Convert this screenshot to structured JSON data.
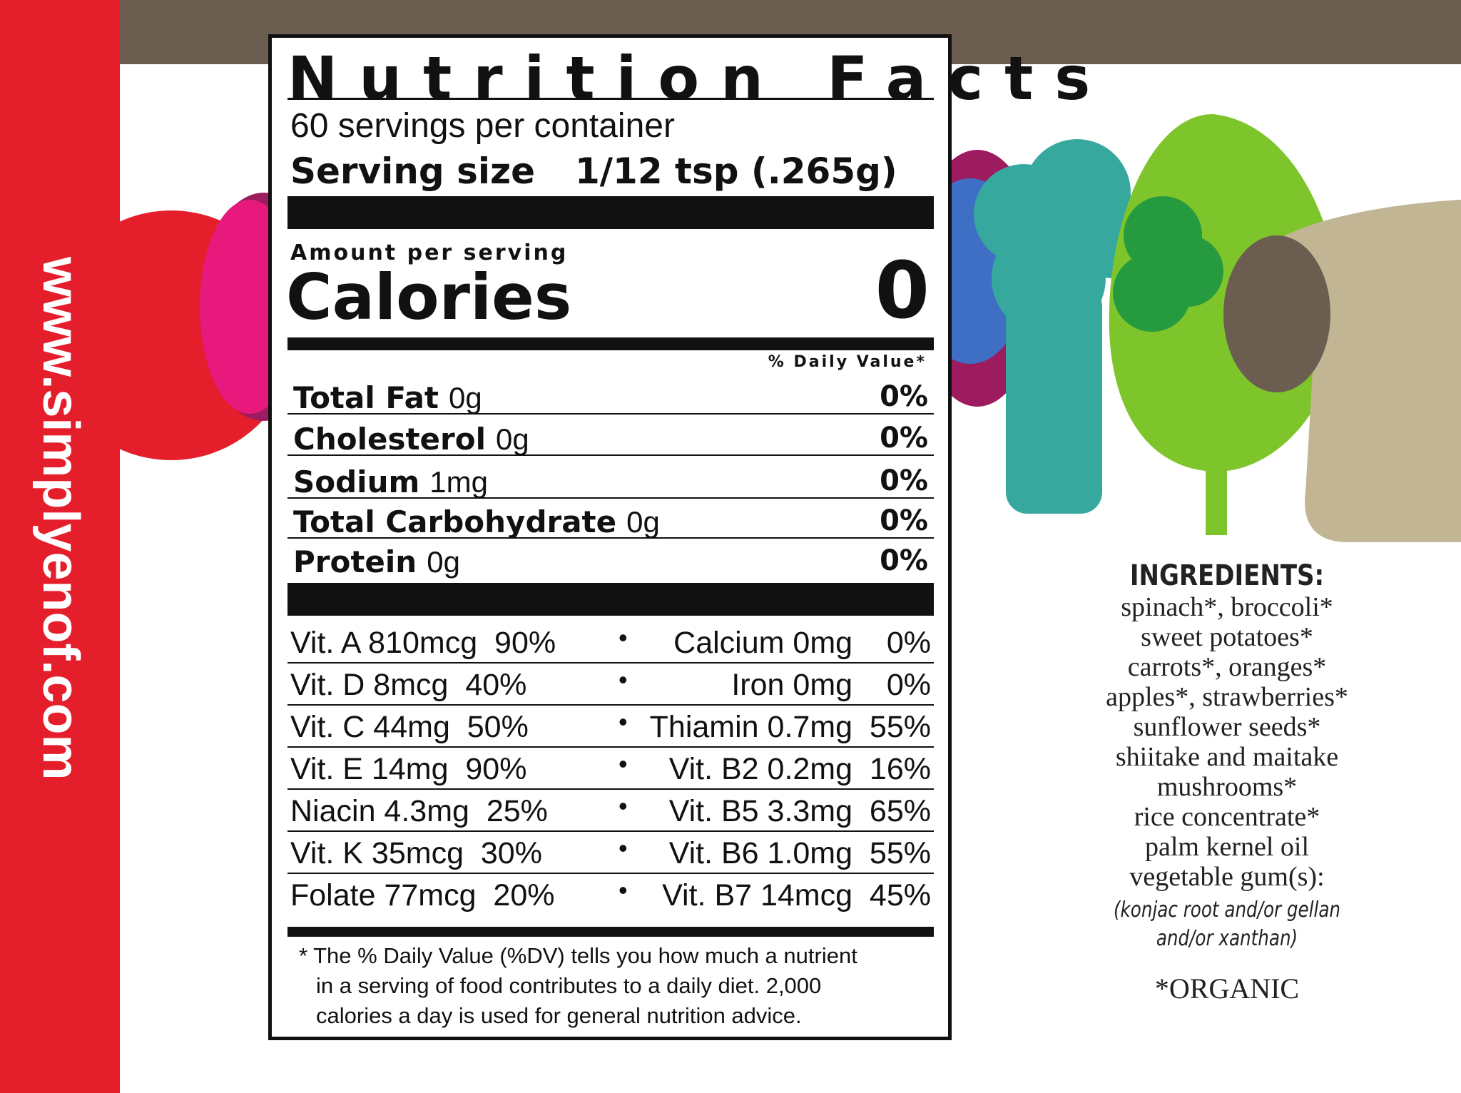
{
  "url": "www.simplyenof.com",
  "colors": {
    "sidebar": "#e41e2b",
    "topbar": "#6b5e50",
    "ink": "#111111"
  },
  "label": {
    "title": "Nutrition Facts",
    "servings": "60 servings per container",
    "serving_size_label": "Serving size",
    "serving_size_value": "1/12 tsp (.265g)",
    "amount_per_serving": "Amount per serving",
    "calories_label": "Calories",
    "calories_value": "0",
    "daily_value_header": "% Daily Value*",
    "nutrients": [
      {
        "name": "Total Fat",
        "amount": "0g",
        "dv": "0%"
      },
      {
        "name": "Cholesterol",
        "amount": "0g",
        "dv": "0%"
      },
      {
        "name": "Sodium",
        "amount": "1mg",
        "dv": "0%"
      },
      {
        "name": "Total Carbohydrate",
        "amount": "0g",
        "dv": "0%"
      },
      {
        "name": "Protein",
        "amount": "0g",
        "dv": "0%"
      }
    ],
    "vitamins": [
      {
        "left": "Vit. A 810mcg  90%",
        "right": "Calcium 0mg    0%"
      },
      {
        "left": "Vit. D 8mcg  40%",
        "right": "Iron 0mg    0%"
      },
      {
        "left": "Vit. C 44mg  50%",
        "right": "Thiamin 0.7mg  55%"
      },
      {
        "left": "Vit. E 14mg  90%",
        "right": "Vit. B2 0.2mg  16%"
      },
      {
        "left": "Niacin 4.3mg  25%",
        "right": "Vit. B5 3.3mg  65%"
      },
      {
        "left": "Vit. K 35mcg  30%",
        "right": "Vit. B6 1.0mg  55%"
      },
      {
        "left": "Folate 77mcg  20%",
        "right": "Vit. B7 14mcg  45%"
      }
    ],
    "bullet": "•",
    "footnote": [
      "* The % Daily Value (%DV) tells you how much a nutrient",
      "in a serving of food contributes to a daily diet. 2,000",
      "calories a day is used for general nutrition advice."
    ]
  },
  "ingredients": {
    "heading": "INGREDIENTS:",
    "lines": [
      "spinach*, broccoli*",
      "sweet potatoes*",
      "carrots*, oranges*",
      "apples*, strawberries*",
      "sunflower seeds*",
      "shiitake and maitake",
      "mushrooms*",
      "rice concentrate*",
      "palm kernel oil",
      "vegetable gum(s):"
    ],
    "note": [
      "(konjac root and/or gellan",
      "and/or xanthan)"
    ],
    "organic": "*ORGANIC"
  }
}
